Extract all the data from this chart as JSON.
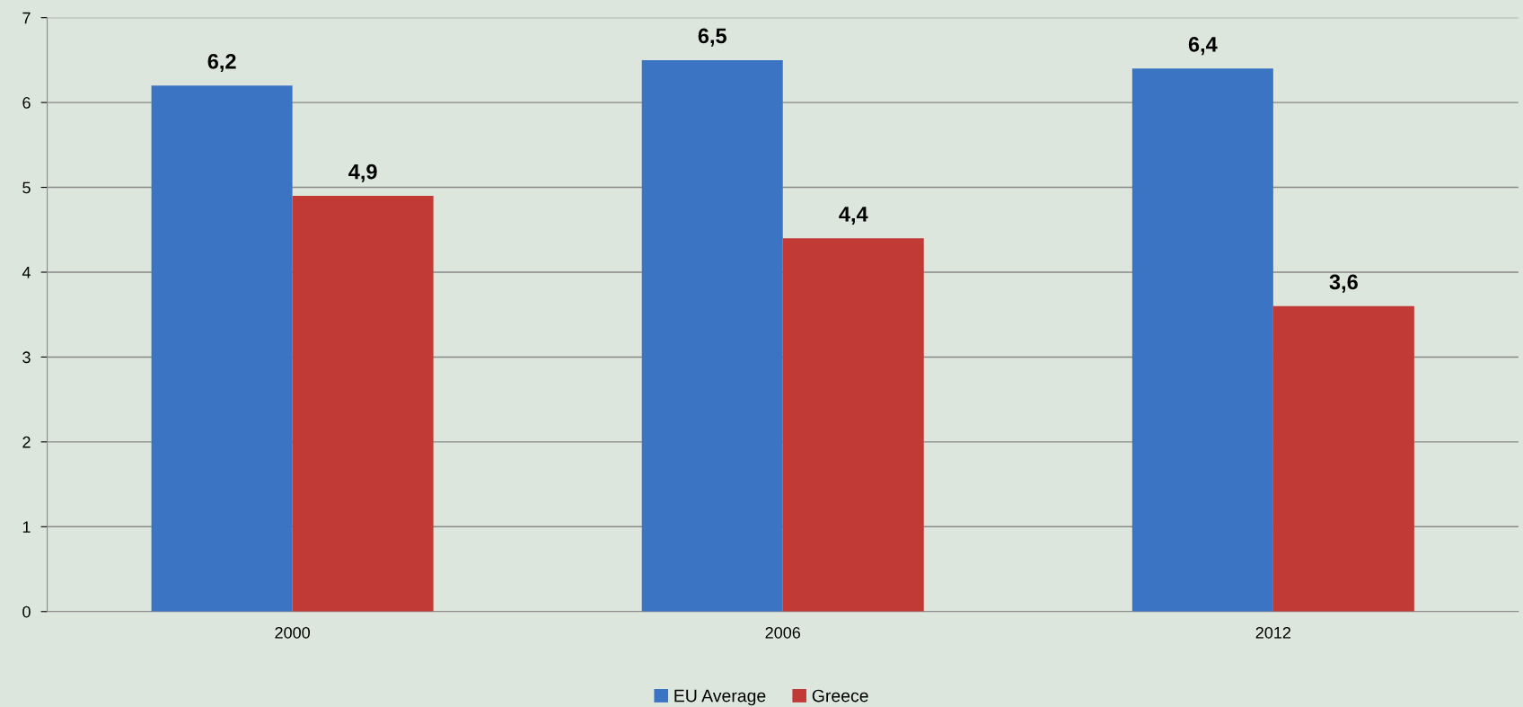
{
  "chart_data": {
    "type": "bar",
    "categories": [
      "2000",
      "2006",
      "2012"
    ],
    "series": [
      {
        "name": "EU Average",
        "color": "#3a74c2",
        "values": [
          6.2,
          6.5,
          6.4
        ],
        "value_labels": [
          "6,2",
          "6,5",
          "6,4"
        ]
      },
      {
        "name": "Greece",
        "color": "#c23a36",
        "values": [
          4.9,
          4.4,
          3.6
        ],
        "value_labels": [
          "4,9",
          "4,4",
          "3,6"
        ]
      }
    ],
    "ylim": [
      0,
      7
    ],
    "yticks": [
      0,
      1,
      2,
      3,
      4,
      5,
      6,
      7
    ],
    "grid": "y",
    "legend": "bottom"
  }
}
